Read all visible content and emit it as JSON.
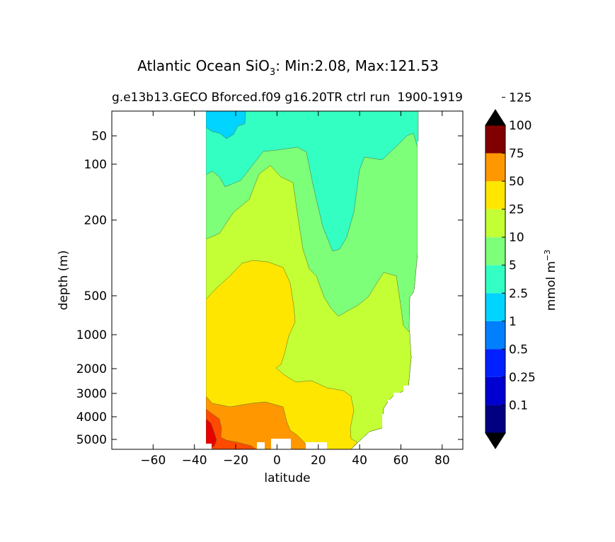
{
  "chart_data": {
    "type": "contour",
    "title_main": "Atlantic Ocean SiO",
    "title_sub": "3",
    "title_rest": ": Min:2.08, Max:121.53",
    "subtitle_left": "g.e13b13.GECO Bforced.f09 g16.20TR ctrl run",
    "subtitle_right": "1900-1919",
    "xlabel": "latitude",
    "ylabel": "depth (m)",
    "xlim": [
      -80,
      90
    ],
    "x_ticks": [
      -60,
      -40,
      -20,
      0,
      20,
      40,
      60,
      80
    ],
    "x_tick_labels": [
      "−60",
      "−40",
      "−20",
      "0",
      "20",
      "40",
      "60",
      "80"
    ],
    "y_ticks": [
      50,
      100,
      200,
      500,
      1000,
      2000,
      3000,
      4000,
      5000
    ],
    "y_tick_labels": [
      "50",
      "100",
      "200",
      "500",
      "1000",
      "2000",
      "3000",
      "4000",
      "5000"
    ],
    "colorbar": {
      "label": "mmol m",
      "label_sup": "−3",
      "levels": [
        0.1,
        0.25,
        0.5,
        1,
        2.5,
        5,
        10,
        25,
        50,
        75,
        100,
        125
      ],
      "level_labels": [
        "0.1",
        "0.25",
        "0.5",
        "1",
        "2.5",
        "5",
        "10",
        "25",
        "50",
        "75",
        "100",
        "125"
      ],
      "colors": [
        "#000080",
        "#0000d0",
        "#0020ff",
        "#0080ff",
        "#00d4ff",
        "#33ffc3",
        "#7dff7a",
        "#c3ff34",
        "#ffe600",
        "#ff9800",
        "#ff4a00",
        "#e60000",
        "#800000"
      ],
      "extend": "both"
    },
    "field_colors": {
      "c1": "#00d4ff",
      "c2_5": "#33ffc3",
      "c5": "#7dff7a",
      "c10": "#c3ff34",
      "c25": "#ffe600",
      "c50": "#ff9800",
      "c75": "#ff4a00",
      "c100": "#e60000"
    }
  }
}
